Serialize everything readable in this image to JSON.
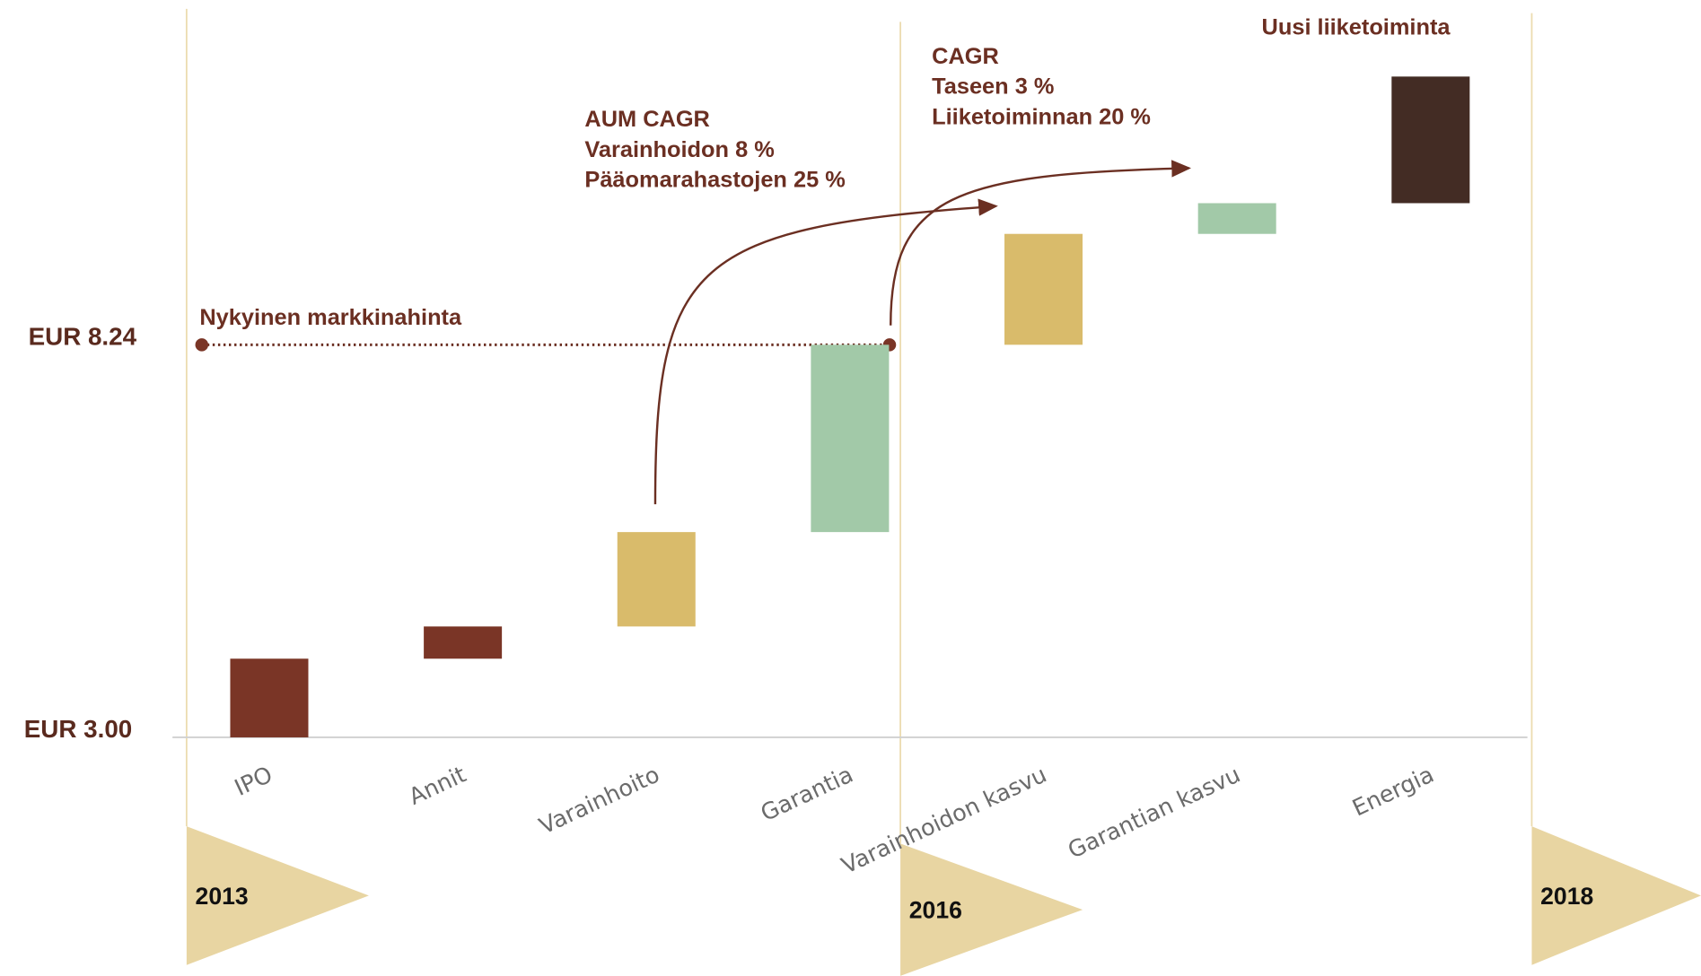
{
  "chart_data": {
    "type": "waterfall",
    "categories": [
      "IPO",
      "Annit",
      "Varainhoito",
      "Garantia",
      "Varainhoidon kasvu",
      "Garantian kasvu",
      "Energia"
    ],
    "values": [
      1.05,
      0.43,
      1.26,
      2.5,
      1.48,
      0.41,
      1.69
    ],
    "colors": [
      "#7a3526",
      "#7a3526",
      "#d9bb6b",
      "#a2c9a8",
      "#d9bb6b",
      "#a2c9a8",
      "#432c24"
    ],
    "ylim": [
      3.0,
      12.84
    ],
    "yticks": [
      {
        "value": 3.0,
        "label": "EUR 3.00"
      },
      {
        "value": 8.24,
        "label": "EUR 8.24"
      }
    ],
    "grid": false,
    "annotations": {
      "market_price": "Nykyinen markkinahinta",
      "aum": [
        "AUM CAGR",
        "Varainhoidon 8 %",
        "Pääomarahastojen 25 %"
      ],
      "cagr": [
        "CAGR",
        "Taseen 3 %",
        "Liiketoiminnan 20 %"
      ],
      "new_business": "Uusi liiketoiminta"
    },
    "timeline": [
      "2013",
      "2016",
      "2018"
    ]
  }
}
